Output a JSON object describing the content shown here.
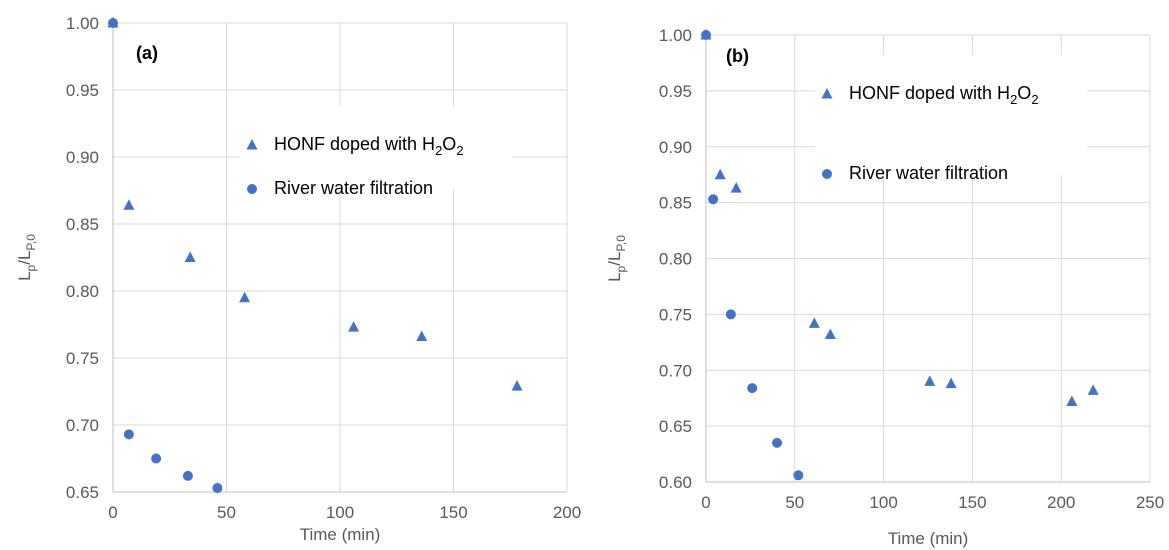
{
  "chart_data": [
    {
      "type": "scatter",
      "panel_label": "(a)",
      "xlabel": "Time (min)",
      "ylabel": {
        "main": "L",
        "sub": "p",
        "sep": "/L",
        "sub2": "P,0"
      },
      "xlim": [
        0,
        200
      ],
      "ylim": [
        0.65,
        1.0
      ],
      "xticks": [
        "0",
        "50",
        "100",
        "150",
        "200"
      ],
      "yticks": [
        "0.65",
        "0.70",
        "0.75",
        "0.80",
        "0.85",
        "0.90",
        "0.95",
        "1.00"
      ],
      "grid": true,
      "legend_position": "top-right",
      "series": [
        {
          "legend": {
            "text": "HONF doped with H",
            "sub1": "2",
            "mid": "O",
            "sub2": "2"
          },
          "marker": "triangle",
          "color": "#4472c4",
          "x": [
            0,
            7,
            34,
            58,
            106,
            136,
            178
          ],
          "y": [
            1.0,
            0.864,
            0.825,
            0.795,
            0.773,
            0.766,
            0.729
          ]
        },
        {
          "legend": {
            "text": "River water filtration"
          },
          "marker": "circle",
          "color": "#4472c4",
          "x": [
            0,
            7,
            19,
            33,
            46
          ],
          "y": [
            1.0,
            0.693,
            0.675,
            0.662,
            0.653
          ]
        }
      ]
    },
    {
      "type": "scatter",
      "panel_label": "(b)",
      "xlabel": "Time (min)",
      "ylabel": {
        "main": "L",
        "sub": "p",
        "sep": "/L",
        "sub2": "P,0"
      },
      "xlim": [
        0,
        250
      ],
      "ylim": [
        0.6,
        1.0
      ],
      "xticks": [
        "0",
        "50",
        "100",
        "150",
        "200",
        "250"
      ],
      "yticks": [
        "0.60",
        "0.65",
        "0.70",
        "0.75",
        "0.80",
        "0.85",
        "0.90",
        "0.95",
        "1.00"
      ],
      "grid": true,
      "legend_position": "top-right",
      "series": [
        {
          "legend": {
            "text": "HONF doped with H",
            "sub1": "2",
            "mid": "O",
            "sub2": "2"
          },
          "marker": "triangle",
          "color": "#4472c4",
          "x": [
            0,
            8,
            17,
            61,
            70,
            126,
            138,
            206,
            218
          ],
          "y": [
            1.0,
            0.875,
            0.863,
            0.742,
            0.732,
            0.69,
            0.688,
            0.672,
            0.682
          ]
        },
        {
          "legend": {
            "text": "River water filtration"
          },
          "marker": "circle",
          "color": "#4472c4",
          "x": [
            0,
            4,
            14,
            26,
            40,
            52
          ],
          "y": [
            1.0,
            0.853,
            0.75,
            0.684,
            0.635,
            0.606
          ]
        }
      ]
    }
  ]
}
